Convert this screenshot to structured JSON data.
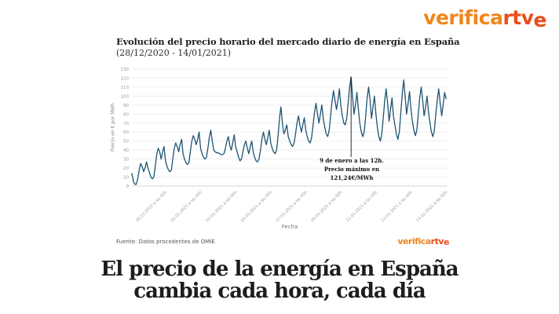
{
  "logo": {
    "part1": "verifica",
    "part2": "rtv",
    "part3": "e"
  },
  "headline": {
    "line1": "El precio de la energía en España",
    "line2": "cambia cada hora, cada día"
  },
  "colors": {
    "line": "#1d5472",
    "grid": "#e8e8e8",
    "axis_line": "#cccccc",
    "tick_text": "#999999",
    "logo_orange_light": "#f0851c",
    "logo_orange_dark": "#e94e1b"
  },
  "chart_data": {
    "type": "line",
    "title": "Evolución del precio horario del mercado diario de energía en España",
    "subtitle": "(28/12/2020 - 14/01/2021)",
    "xlabel": "Fecha",
    "ylabel": "Precio en € por MWh",
    "source": "Fuente: Datos procedentes de OMIE",
    "ylim": [
      0,
      130
    ],
    "yticks": [
      0,
      10,
      20,
      30,
      40,
      50,
      60,
      70,
      80,
      90,
      100,
      110,
      120,
      130
    ],
    "x_hours_total": 432,
    "sample_interval_hours": 2,
    "x_tick_hours": [
      48,
      96,
      144,
      192,
      240,
      288,
      336,
      384,
      432
    ],
    "x_tick_labels": [
      "30-12-2020 a las 00h",
      "01-01-2021 a las 00h",
      "03-01-2021 a las 00h",
      "05-01-2021 a las 00h",
      "07-01-2021 a las 00h",
      "09-01-2021 a las 00h",
      "11-01-2021 a las 00h",
      "13-01-2021 a las 00h",
      "15-01-2021 a las 00h"
    ],
    "line_color": "#1d5472",
    "values": [
      14,
      5,
      2,
      2,
      8,
      18,
      25,
      22,
      16,
      20,
      27,
      20,
      15,
      10,
      8,
      10,
      22,
      35,
      42,
      38,
      30,
      38,
      44,
      28,
      22,
      18,
      16,
      18,
      30,
      42,
      48,
      44,
      38,
      46,
      52,
      36,
      30,
      26,
      24,
      26,
      38,
      50,
      56,
      52,
      46,
      52,
      60,
      42,
      36,
      32,
      30,
      32,
      42,
      54,
      62,
      50,
      40,
      38,
      37,
      37,
      36,
      35,
      35,
      36,
      42,
      50,
      55,
      45,
      40,
      48,
      57,
      44,
      38,
      32,
      28,
      30,
      38,
      46,
      50,
      42,
      36,
      44,
      50,
      38,
      32,
      28,
      27,
      30,
      40,
      52,
      60,
      52,
      46,
      54,
      62,
      48,
      42,
      38,
      36,
      40,
      55,
      75,
      88,
      70,
      58,
      62,
      68,
      55,
      50,
      46,
      44,
      48,
      58,
      70,
      78,
      68,
      60,
      68,
      76,
      62,
      55,
      50,
      48,
      54,
      68,
      82,
      92,
      80,
      70,
      80,
      90,
      75,
      65,
      58,
      55,
      62,
      78,
      95,
      106,
      95,
      85,
      95,
      108,
      90,
      78,
      70,
      68,
      75,
      92,
      110,
      121.24,
      100,
      80,
      90,
      104,
      85,
      70,
      60,
      55,
      60,
      78,
      98,
      110,
      95,
      75,
      88,
      100,
      80,
      65,
      55,
      50,
      58,
      75,
      95,
      108,
      92,
      72,
      85,
      98,
      78,
      68,
      58,
      52,
      60,
      80,
      102,
      118,
      100,
      80,
      92,
      105,
      85,
      72,
      62,
      56,
      62,
      80,
      98,
      110,
      95,
      78,
      88,
      100,
      82,
      70,
      60,
      55,
      62,
      80,
      96,
      108,
      92,
      78,
      90,
      104,
      97
    ],
    "annotation": {
      "index": 150,
      "value": 121.24,
      "lines": [
        "9 de enero a las 12h.",
        "Precio máximo en",
        "121,24€/MWh"
      ]
    }
  }
}
